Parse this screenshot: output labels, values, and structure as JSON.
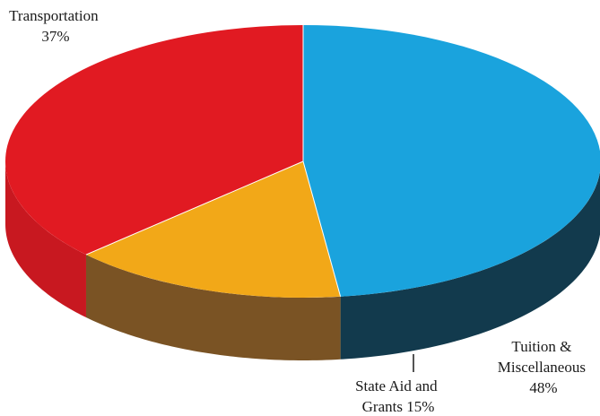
{
  "chart_data": {
    "type": "pie",
    "title": "",
    "slices": [
      {
        "label": "Tuition & Miscellaneous",
        "value": 48,
        "display": [
          "Tuition &",
          "Miscellaneous",
          "48%"
        ],
        "color": "#1aa3dd",
        "side_color": "#123a4d"
      },
      {
        "label": "State Aid and Grants",
        "value": 15,
        "display": [
          "State Aid and",
          "Grants 15%"
        ],
        "color": "#f2a818",
        "side_color": "#7a5324"
      },
      {
        "label": "Transportation",
        "value": 37,
        "display": [
          "Transportation",
          "37%"
        ],
        "color": "#e11a22",
        "side_color": "#c81820"
      }
    ],
    "legend": "none",
    "style": "3d-pie"
  }
}
